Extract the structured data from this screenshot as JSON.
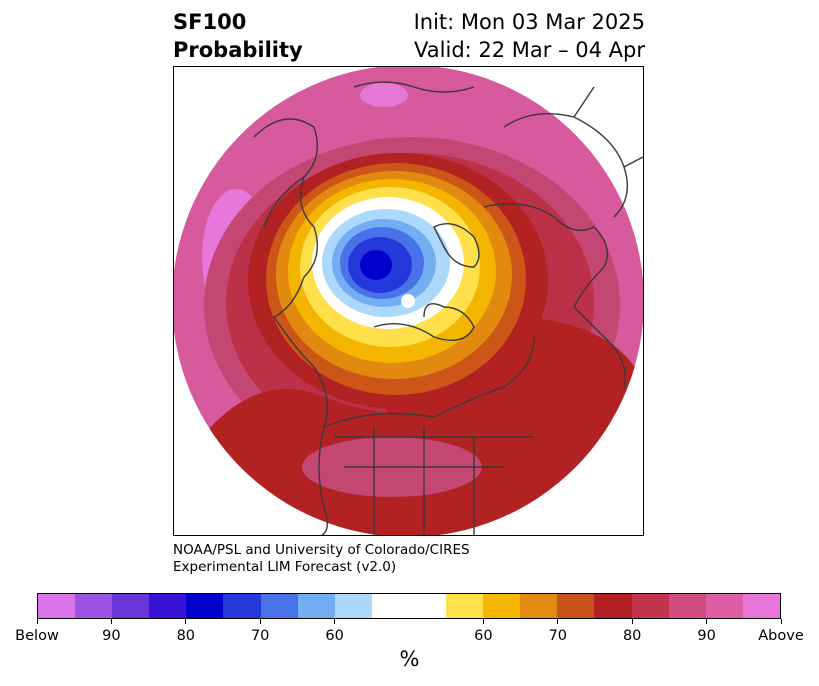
{
  "title": {
    "variable": "SF100",
    "product": "Probability",
    "init": "Init: Mon 03 Mar 2025",
    "valid": "Valid: 22 Mar – 04 Apr"
  },
  "credit": {
    "line1": "NOAA/PSL and University of Colorado/CIRES",
    "line2": "Experimental LIM Forecast (v2.0)"
  },
  "colorbar": {
    "units": "%",
    "bins": [
      "#d873e8",
      "#9c54e3",
      "#6934d8",
      "#3a14d6",
      "#0000cc",
      "#2438dc",
      "#4a72e8",
      "#74aef2",
      "#acd9fb",
      "#ffffff",
      "#ffffff",
      "#ffe14a",
      "#f5b800",
      "#e38a10",
      "#c85318",
      "#b32024",
      "#c2354c",
      "#d04d7f",
      "#dc5fa6",
      "#e876da"
    ],
    "tick_labels": [
      "Below",
      "90",
      "80",
      "70",
      "60",
      "60",
      "70",
      "80",
      "90",
      "Above"
    ]
  },
  "map": {
    "projection": "north-polar-stereographic",
    "palette": {
      "outer": "#d65a9c",
      "pink_dark": "#c44672",
      "red_crimson": "#bc3148",
      "red": "#b22222",
      "orange_dark": "#cc5518",
      "orange": "#e28a10",
      "gold": "#f3b500",
      "yellow": "#ffe04a",
      "light_blue": "#acd9fb",
      "blue_mid": "#74aef2",
      "blue": "#4a72e8",
      "blue_dark": "#2438dc",
      "navy": "#0000cc",
      "magenta": "#e877da",
      "coast": "#3a3a3a"
    }
  }
}
